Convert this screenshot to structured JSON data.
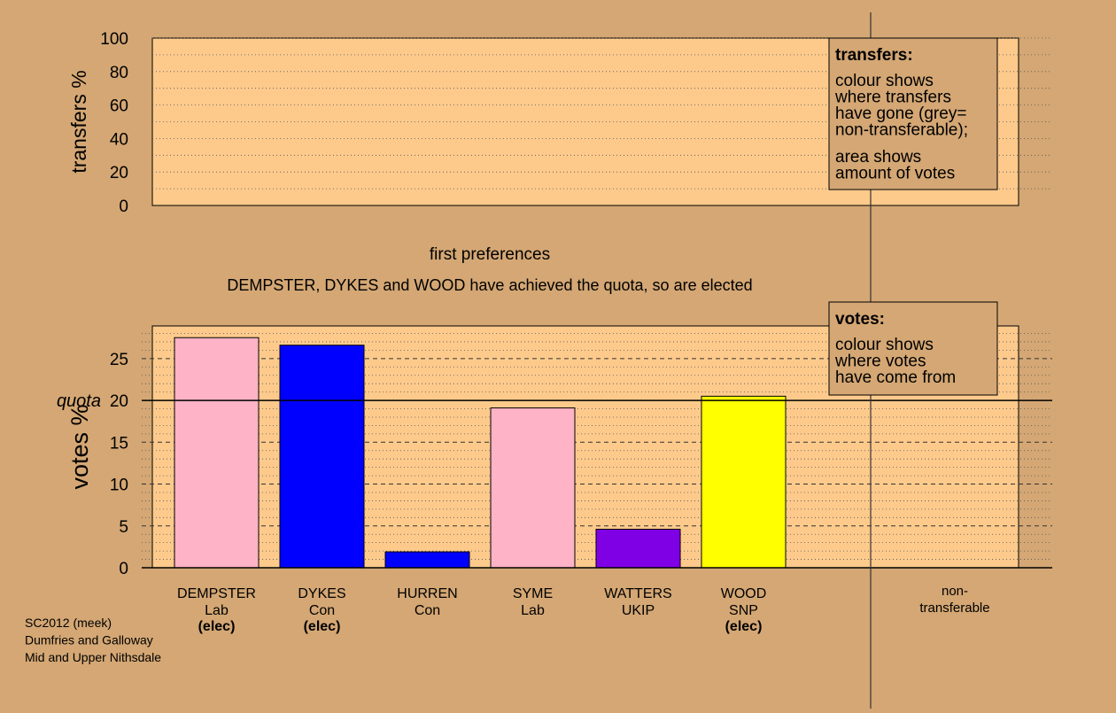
{
  "chart_data": {
    "type": "bar",
    "colors": {
      "background": "#d4a774",
      "panel": "#fdca8c",
      "Lab": "#ffb3c6",
      "Con": "#0000ff",
      "UKIP": "#8000e6",
      "SNP": "#ffff00"
    },
    "transfers_panel": {
      "ylabel": "transfers %",
      "ylim": [
        0,
        100
      ],
      "yticks": [
        "0",
        "20",
        "40",
        "60",
        "80",
        "100"
      ],
      "legend": {
        "title": "transfers:",
        "lines1": [
          "colour shows",
          "where transfers",
          "have gone (grey=",
          "non-transferable);"
        ],
        "lines2": [
          "area shows",
          "amount of votes"
        ]
      }
    },
    "stage_title": "first preferences",
    "stage_note": "DEMPSTER, DYKES and WOOD have achieved the quota, so are elected",
    "votes_panel": {
      "ylabel": "votes %",
      "ylim": [
        0,
        28.9
      ],
      "quota_value": 20,
      "quota_label": "quota",
      "yticks": [
        "0",
        "5",
        "10",
        "15",
        "20",
        "25"
      ],
      "legend": {
        "title": "votes:",
        "lines": [
          "colour shows",
          "where votes",
          "have come from"
        ]
      }
    },
    "categories": [
      {
        "name": "DEMPSTER",
        "party": "Lab",
        "elected": "(elec)",
        "value": 27.5,
        "color": "#ffb3c6"
      },
      {
        "name": "DYKES",
        "party": "Con",
        "elected": "(elec)",
        "value": 26.6,
        "color": "#0000ff"
      },
      {
        "name": "HURREN",
        "party": "Con",
        "elected": "",
        "value": 1.9,
        "color": "#0000ff"
      },
      {
        "name": "SYME",
        "party": "Lab",
        "elected": "",
        "value": 19.1,
        "color": "#ffb3c6"
      },
      {
        "name": "WATTERS",
        "party": "UKIP",
        "elected": "",
        "value": 4.6,
        "color": "#8000e6"
      },
      {
        "name": "WOOD",
        "party": "SNP",
        "elected": "(elec)",
        "value": 20.5,
        "color": "#ffff00"
      }
    ],
    "non_transferable": {
      "label_lines": [
        "non-",
        "transferable"
      ],
      "value": 0
    },
    "footer_lines": [
      "SC2012 (meek)",
      "Dumfries and Galloway",
      "Mid and Upper Nithsdale"
    ]
  }
}
